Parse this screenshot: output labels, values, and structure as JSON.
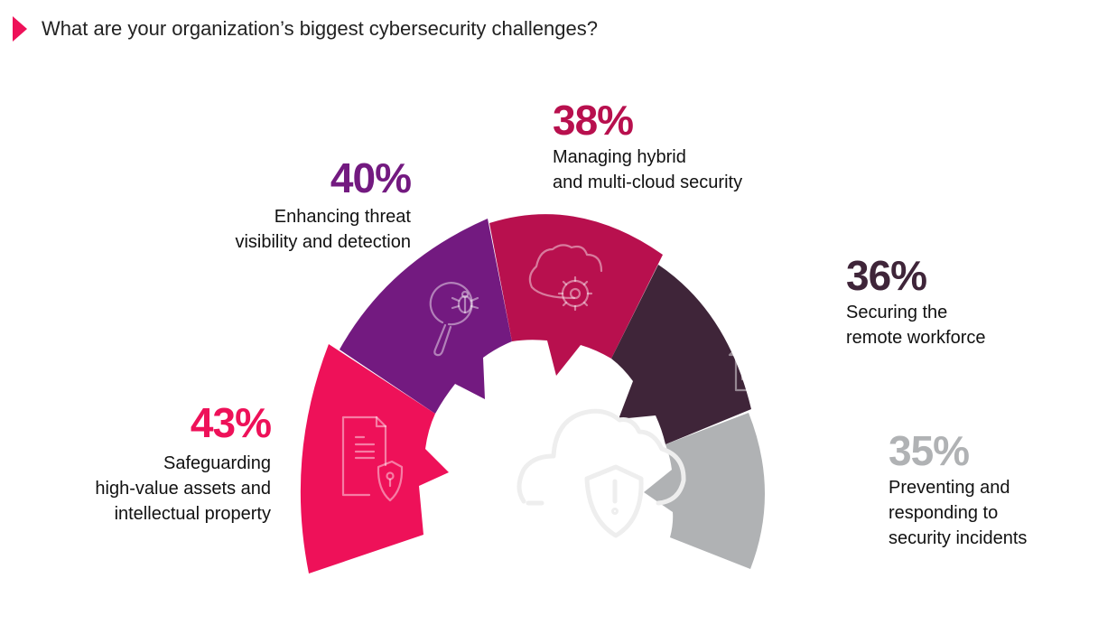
{
  "title": "What are your organization’s biggest cybersecurity challenges?",
  "chart_data": {
    "type": "radial-bar",
    "title": "What are your organization’s biggest cybersecurity challenges?",
    "unit": "%",
    "items": [
      {
        "value": 43,
        "label": "43%",
        "lines": [
          "Safeguarding",
          "high-value assets and",
          "intellectual property"
        ],
        "color": "#ee1159",
        "icon": "document-shield-icon"
      },
      {
        "value": 40,
        "label": "40%",
        "lines": [
          "Enhancing threat",
          "visibility and detection"
        ],
        "color": "#731a80",
        "icon": "magnifier-bug-icon"
      },
      {
        "value": 38,
        "label": "38%",
        "lines": [
          "Managing hybrid",
          "and multi-cloud security"
        ],
        "color": "#b8104e",
        "icon": "cloud-gear-icon"
      },
      {
        "value": 36,
        "label": "36%",
        "lines": [
          "Securing the",
          "remote workforce"
        ],
        "color": "#3f2539",
        "icon": "house-briefcase-icon"
      },
      {
        "value": 35,
        "label": "35%",
        "lines": [
          "Preventing and",
          "responding to",
          "security incidents"
        ],
        "color": "#b0b2b4",
        "icon": "wrench-bug-icon"
      }
    ],
    "center_icon": "cloud-shield-alert-icon"
  }
}
